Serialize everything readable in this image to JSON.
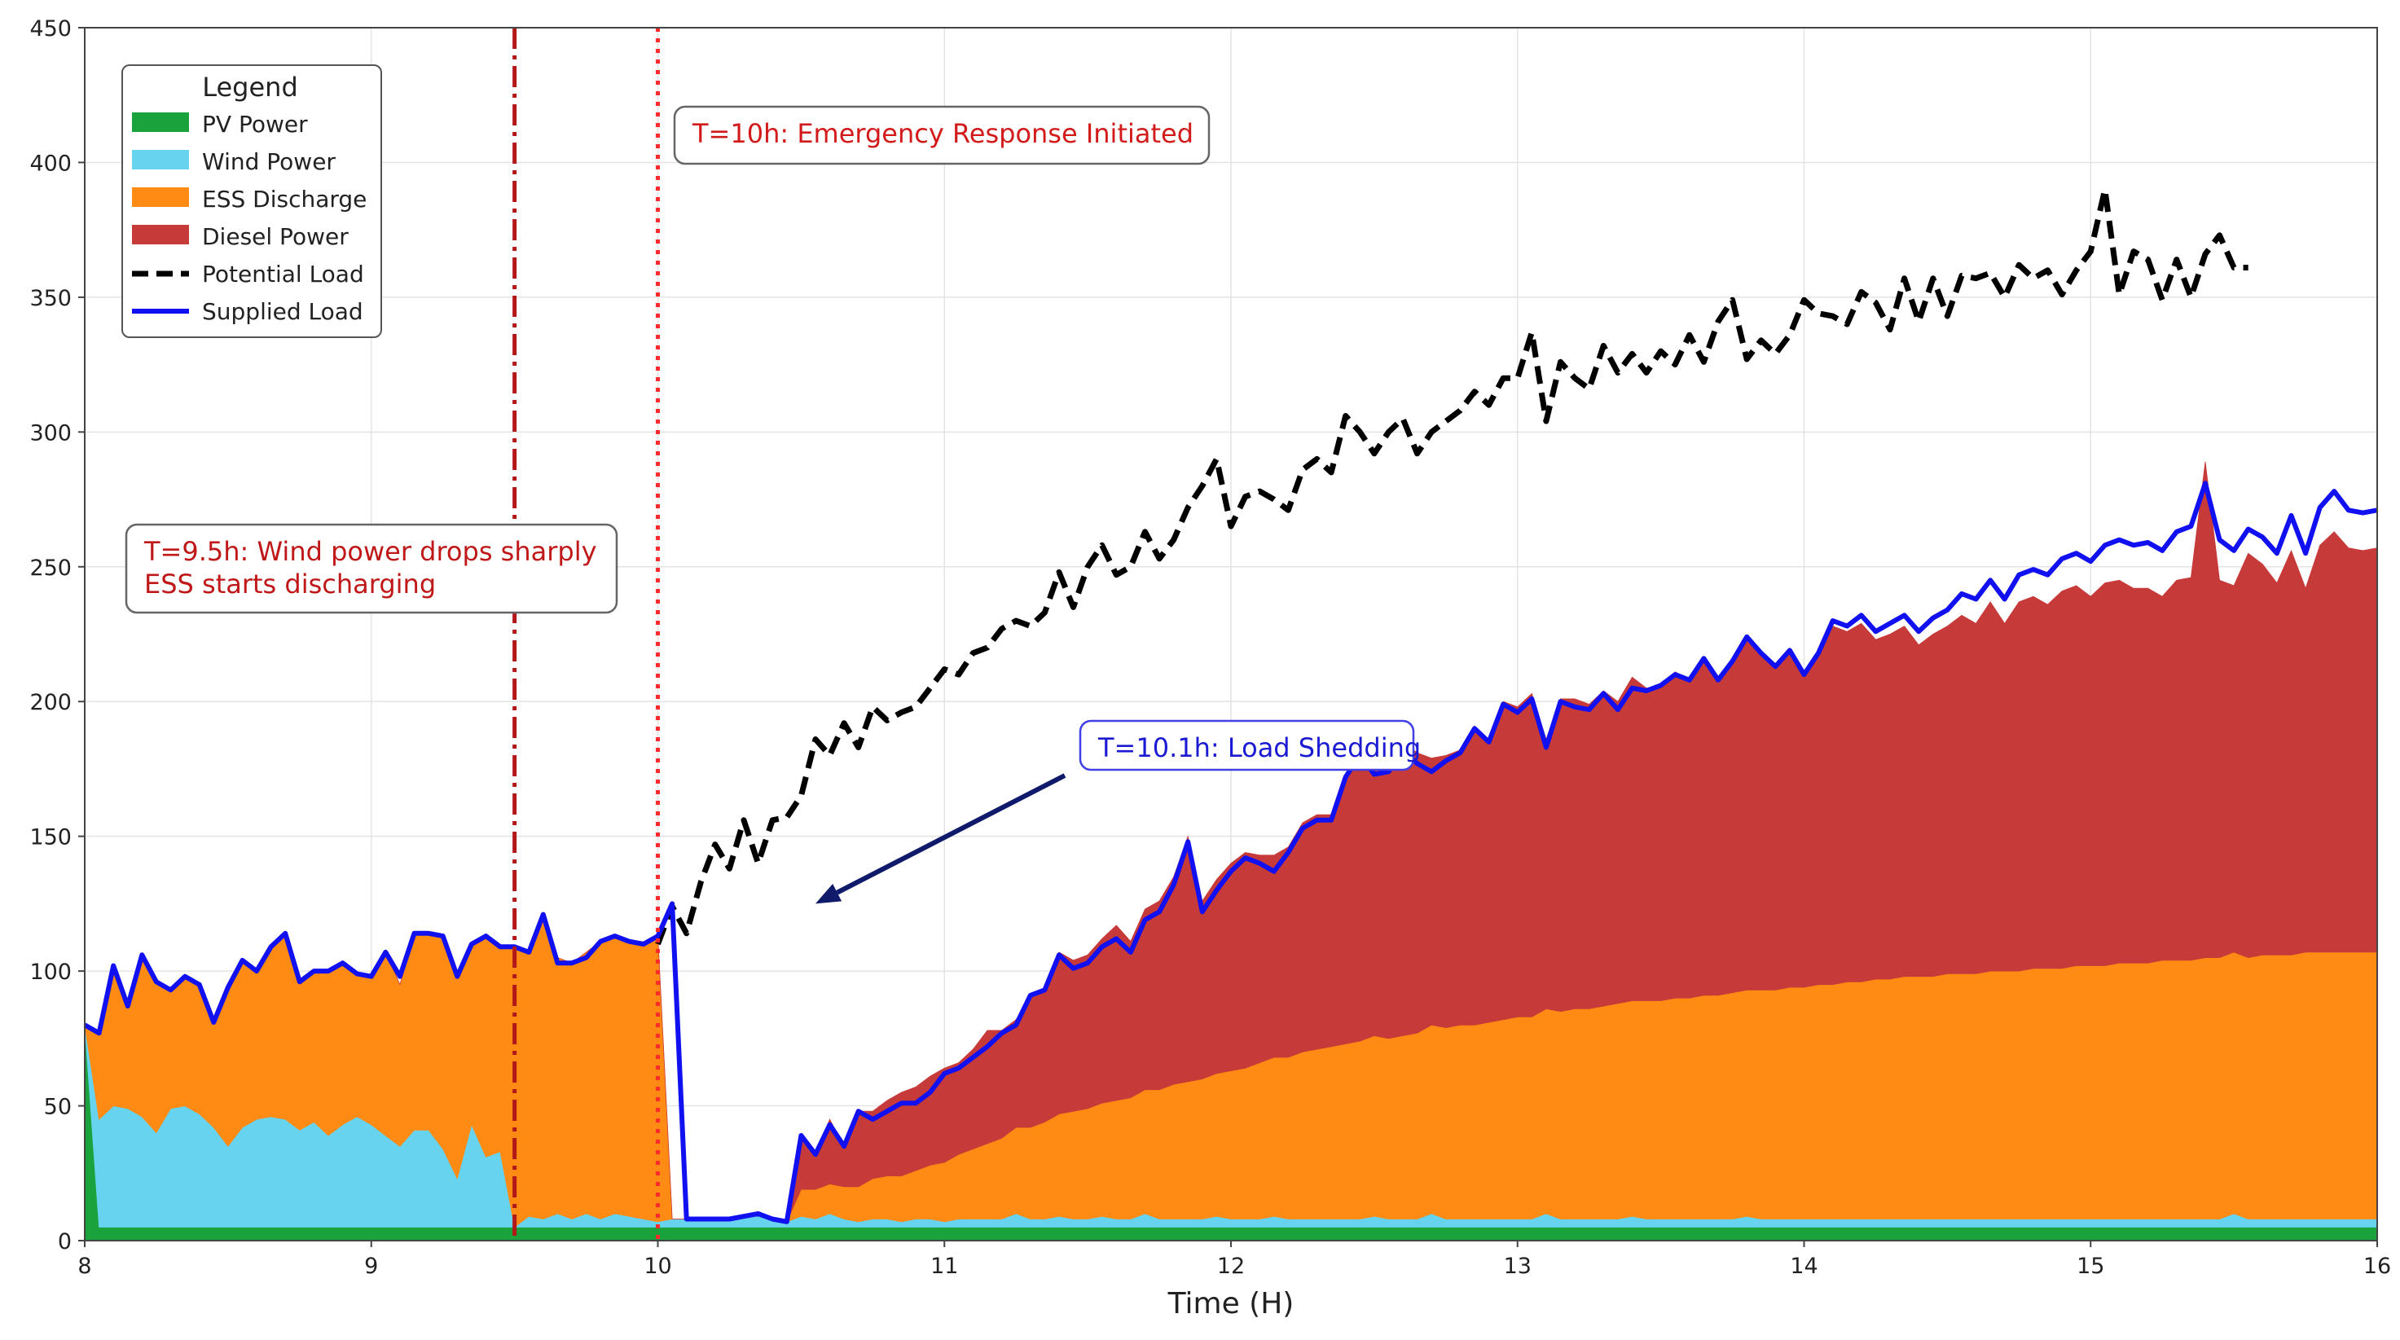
{
  "chart_data": {
    "type": "area",
    "title": "",
    "xlabel": "Time (H)",
    "ylabel": "",
    "xlim": [
      8,
      16
    ],
    "ylim": [
      0,
      450
    ],
    "xticks": [
      8,
      9,
      10,
      11,
      12,
      13,
      14,
      15,
      16
    ],
    "yticks": [
      0,
      50,
      100,
      150,
      200,
      250,
      300,
      350,
      400,
      450
    ],
    "grid": true,
    "legend": {
      "title": "Legend",
      "position": "top-left",
      "entries": [
        "PV Power",
        "Wind Power",
        "ESS Discharge",
        "Diesel Power",
        "Potential Load",
        "Supplied Load"
      ]
    },
    "colors": {
      "pv": "#1aa33c",
      "wind": "#67d3ee",
      "ess": "#ff8a14",
      "diesel": "#c73a3a",
      "potential": "#000000",
      "supplied": "#1010f0",
      "vline_wind": "#b31818",
      "vline_emergency": "#ff2a2a",
      "ann_red": "#d21a1a",
      "ann_blue": "#1a1ad2",
      "arrow": "#0f1a6a"
    },
    "time": [
      8.0,
      8.05,
      8.1,
      8.15,
      8.2,
      8.25,
      8.3,
      8.35,
      8.4,
      8.45,
      8.5,
      8.55,
      8.6,
      8.65,
      8.7,
      8.75,
      8.8,
      8.85,
      8.9,
      8.95,
      9.0,
      9.05,
      9.1,
      9.15,
      9.2,
      9.25,
      9.3,
      9.35,
      9.4,
      9.45,
      9.5,
      9.55,
      9.6,
      9.65,
      9.7,
      9.75,
      9.8,
      9.85,
      9.9,
      9.95,
      10.0,
      10.05,
      10.1,
      10.15,
      10.2,
      10.25,
      10.3,
      10.35,
      10.4,
      10.45,
      10.5,
      10.55,
      10.6,
      10.65,
      10.7,
      10.75,
      10.8,
      10.85,
      10.9,
      10.95,
      11.0,
      11.05,
      11.1,
      11.15,
      11.2,
      11.25,
      11.3,
      11.35,
      11.4,
      11.45,
      11.5,
      11.55,
      11.6,
      11.65,
      11.7,
      11.75,
      11.8,
      11.85,
      11.9,
      11.95,
      12.0,
      12.05,
      12.1,
      12.15,
      12.2,
      12.25,
      12.3,
      12.35,
      12.4,
      12.45,
      12.5,
      12.55,
      12.6,
      12.65,
      12.7,
      12.75,
      12.8,
      12.85,
      12.9,
      12.95,
      13.0,
      13.05,
      13.1,
      13.15,
      13.2,
      13.25,
      13.3,
      13.35,
      13.4,
      13.45,
      13.5,
      13.55,
      13.6,
      13.65,
      13.7,
      13.75,
      13.8,
      13.85,
      13.9,
      13.95,
      14.0,
      14.05,
      14.1,
      14.15,
      14.2,
      14.25,
      14.3,
      14.35,
      14.4,
      14.45,
      14.5,
      14.55,
      14.6,
      14.65,
      14.7,
      14.75,
      14.8,
      14.85,
      14.9,
      14.95,
      15.0,
      15.05,
      15.1,
      15.15,
      15.2,
      15.25,
      15.3,
      15.35,
      15.4,
      15.45,
      15.5,
      15.55,
      15.6,
      15.65,
      15.7,
      15.75,
      15.8,
      15.85,
      15.9,
      15.95,
      16.0
    ],
    "series": [
      {
        "name": "PV Power",
        "kind": "area",
        "values": [
          80,
          5,
          5,
          5,
          5,
          5,
          5,
          5,
          5,
          5,
          5,
          5,
          5,
          5,
          5,
          5,
          5,
          5,
          5,
          5,
          5,
          5,
          5,
          5,
          5,
          5,
          5,
          5,
          5,
          5,
          5,
          5,
          5,
          5,
          5,
          5,
          5,
          5,
          5,
          5,
          5,
          5,
          5,
          5,
          5,
          5,
          5,
          5,
          5,
          5,
          5,
          5,
          5,
          5,
          5,
          5,
          5,
          5,
          5,
          5,
          5,
          5,
          5,
          5,
          5,
          5,
          5,
          5,
          5,
          5,
          5,
          5,
          5,
          5,
          5,
          5,
          5,
          5,
          5,
          5,
          5,
          5,
          5,
          5,
          5,
          5,
          5,
          5,
          5,
          5,
          5,
          5,
          5,
          5,
          5,
          5,
          5,
          5,
          5,
          5,
          5,
          5,
          5,
          5,
          5,
          5,
          5,
          5,
          5,
          5,
          5,
          5,
          5,
          5,
          5,
          5,
          5,
          5,
          5,
          5,
          5,
          5,
          5,
          5,
          5,
          5,
          5,
          5,
          5,
          5,
          5,
          5,
          5,
          5,
          5,
          5,
          5,
          5,
          5,
          5,
          5,
          5,
          5,
          5,
          5,
          5,
          5,
          5,
          5,
          5,
          5,
          5,
          5,
          5,
          5,
          5,
          5,
          5,
          5,
          5,
          5
        ]
      },
      {
        "name": "Wind Power",
        "kind": "area",
        "values": [
          0,
          40,
          45,
          44,
          41,
          35,
          44,
          45,
          42,
          37,
          30,
          37,
          40,
          41,
          40,
          36,
          39,
          34,
          38,
          41,
          38,
          34,
          30,
          36,
          36,
          29,
          18,
          38,
          26,
          28,
          0,
          4,
          3,
          5,
          3,
          5,
          3,
          5,
          4,
          3,
          2,
          3,
          3,
          3,
          3,
          3,
          4,
          5,
          3,
          2,
          4,
          3,
          5,
          3,
          2,
          3,
          3,
          2,
          3,
          3,
          2,
          3,
          3,
          3,
          3,
          5,
          3,
          3,
          4,
          3,
          3,
          4,
          3,
          3,
          5,
          3,
          3,
          3,
          3,
          4,
          3,
          3,
          3,
          4,
          3,
          3,
          3,
          3,
          3,
          3,
          4,
          3,
          3,
          3,
          5,
          3,
          3,
          3,
          3,
          3,
          3,
          3,
          5,
          3,
          3,
          3,
          3,
          3,
          4,
          3,
          3,
          3,
          3,
          3,
          3,
          3,
          4,
          3,
          3,
          3,
          3,
          3,
          3,
          3,
          3,
          3,
          3,
          3,
          3,
          3,
          3,
          3,
          3,
          3,
          3,
          3,
          3,
          3,
          3,
          3,
          3,
          3,
          3,
          3,
          3,
          3,
          3,
          3,
          3,
          3,
          5,
          3,
          3,
          3,
          3,
          3,
          3,
          3,
          3,
          3,
          3
        ]
      },
      {
        "name": "ESS Discharge",
        "kind": "area",
        "values": [
          0,
          32,
          52,
          38,
          60,
          56,
          44,
          48,
          48,
          39,
          59,
          62,
          55,
          63,
          69,
          55,
          56,
          61,
          60,
          53,
          55,
          68,
          60,
          73,
          73,
          79,
          75,
          67,
          82,
          76,
          104,
          98,
          113,
          95,
          95,
          97,
          103,
          103,
          102,
          102,
          106,
          0,
          0,
          0,
          0,
          0,
          0,
          0,
          0,
          0,
          10,
          11,
          11,
          12,
          13,
          15,
          16,
          17,
          18,
          20,
          22,
          24,
          26,
          28,
          30,
          32,
          34,
          36,
          38,
          40,
          41,
          42,
          44,
          45,
          46,
          48,
          50,
          51,
          52,
          53,
          55,
          56,
          58,
          59,
          60,
          62,
          63,
          64,
          65,
          66,
          67,
          67,
          68,
          69,
          70,
          71,
          72,
          72,
          73,
          74,
          75,
          75,
          76,
          77,
          78,
          78,
          79,
          80,
          80,
          81,
          81,
          82,
          82,
          83,
          83,
          84,
          84,
          85,
          85,
          86,
          86,
          87,
          87,
          88,
          88,
          89,
          89,
          90,
          90,
          90,
          91,
          91,
          91,
          92,
          92,
          92,
          93,
          93,
          93,
          94,
          94,
          94,
          95,
          95,
          95,
          96,
          96,
          96,
          97,
          97,
          97,
          97,
          98,
          98,
          98,
          99,
          99,
          99,
          99,
          99,
          99
        ]
      },
      {
        "name": "Diesel Power",
        "kind": "area",
        "values": [
          0,
          0,
          0,
          0,
          0,
          0,
          0,
          0,
          0,
          0,
          0,
          0,
          0,
          0,
          0,
          0,
          0,
          0,
          0,
          0,
          0,
          0,
          0,
          0,
          0,
          0,
          0,
          0,
          0,
          0,
          0,
          0,
          0,
          0,
          0,
          0,
          0,
          0,
          0,
          0,
          0,
          0,
          0,
          0,
          0,
          0,
          0,
          0,
          0,
          0,
          20,
          13,
          24,
          15,
          28,
          25,
          28,
          31,
          31,
          33,
          35,
          34,
          37,
          42,
          40,
          40,
          48,
          50,
          60,
          56,
          57,
          61,
          65,
          58,
          67,
          70,
          77,
          91,
          66,
          72,
          77,
          80,
          77,
          75,
          78,
          85,
          87,
          86,
          100,
          107,
          102,
          102,
          109,
          104,
          99,
          101,
          102,
          111,
          104,
          118,
          115,
          120,
          100,
          116,
          115,
          113,
          117,
          112,
          120,
          116,
          117,
          121,
          118,
          125,
          117,
          123,
          131,
          124,
          120,
          124,
          116,
          123,
          133,
          130,
          133,
          126,
          128,
          130,
          123,
          127,
          129,
          133,
          130,
          137,
          129,
          137,
          138,
          135,
          140,
          141,
          137,
          142,
          142,
          139,
          139,
          135,
          141,
          142,
          184,
          140,
          136,
          150,
          145,
          138,
          150,
          135,
          151,
          156,
          150,
          149,
          150
        ]
      },
      {
        "name": "Potential Load",
        "kind": "line",
        "dash": "dashed",
        "values": [
          null,
          null,
          null,
          null,
          null,
          null,
          null,
          null,
          null,
          null,
          null,
          null,
          null,
          null,
          null,
          null,
          null,
          null,
          null,
          null,
          null,
          null,
          null,
          null,
          null,
          null,
          null,
          null,
          null,
          null,
          null,
          null,
          null,
          null,
          null,
          null,
          null,
          null,
          null,
          null,
          110,
          124,
          114,
          133,
          147,
          138,
          156,
          140,
          156,
          157,
          165,
          186,
          180,
          192,
          183,
          198,
          193,
          196,
          198,
          205,
          212,
          210,
          218,
          220,
          227,
          230,
          228,
          233,
          248,
          235,
          250,
          258,
          247,
          250,
          263,
          253,
          260,
          272,
          280,
          290,
          265,
          276,
          278,
          275,
          271,
          286,
          290,
          285,
          306,
          300,
          292,
          300,
          305,
          292,
          300,
          304,
          308,
          315,
          310,
          320,
          320,
          337,
          304,
          326,
          320,
          316,
          332,
          322,
          329,
          322,
          330,
          325,
          336,
          326,
          341,
          349,
          327,
          334,
          329,
          336,
          349,
          344,
          343,
          340,
          352,
          348,
          338,
          357,
          341,
          357,
          343,
          358,
          357,
          359,
          350,
          362,
          357,
          360,
          351,
          360,
          367,
          390,
          351,
          367,
          364,
          349,
          364,
          350,
          366,
          373,
          361,
          361
        ]
      },
      {
        "name": "Supplied Load",
        "kind": "line",
        "dash": "solid",
        "values": [
          80,
          77,
          102,
          87,
          106,
          96,
          93,
          98,
          95,
          81,
          94,
          104,
          100,
          109,
          114,
          96,
          100,
          100,
          103,
          99,
          98,
          107,
          98,
          114,
          114,
          113,
          98,
          110,
          113,
          109,
          109,
          107,
          121,
          103,
          103,
          105,
          111,
          113,
          111,
          110,
          113,
          125,
          8,
          8,
          8,
          8,
          9,
          10,
          8,
          7,
          39,
          32,
          43,
          35,
          48,
          45,
          48,
          51,
          51,
          55,
          62,
          64,
          68,
          72,
          77,
          80,
          91,
          93,
          106,
          101,
          103,
          109,
          112,
          107,
          119,
          122,
          132,
          148,
          122,
          130,
          137,
          142,
          140,
          137,
          144,
          153,
          156,
          156,
          172,
          180,
          173,
          174,
          182,
          177,
          174,
          178,
          181,
          190,
          185,
          199,
          196,
          201,
          183,
          200,
          198,
          197,
          203,
          197,
          205,
          204,
          206,
          210,
          208,
          216,
          208,
          215,
          224,
          218,
          213,
          219,
          210,
          218,
          230,
          228,
          232,
          226,
          229,
          232,
          226,
          231,
          234,
          240,
          238,
          245,
          238,
          247,
          249,
          247,
          253,
          255,
          252,
          258,
          260,
          258,
          259,
          256,
          263,
          265,
          281,
          260,
          256,
          264,
          261,
          255,
          269,
          255,
          272,
          278,
          271,
          270,
          271
        ]
      }
    ],
    "vlines": [
      {
        "x": 9.5,
        "style": "dashdot",
        "color": "#b31818"
      },
      {
        "x": 10.0,
        "style": "dotted",
        "color": "#ff2a2a"
      }
    ],
    "annotations": [
      {
        "lines": [
          "T=10h: Emergency Response Initiated"
        ],
        "color": "#d21a1a"
      },
      {
        "lines": [
          "T=9.5h: Wind power drops sharply",
          "ESS starts discharging"
        ],
        "color": "#c01818"
      },
      {
        "lines": [
          "T=10.1h: Load Shedding"
        ],
        "color": "#1a1ad2",
        "arrow_target": [
          10.55,
          125
        ]
      }
    ]
  }
}
